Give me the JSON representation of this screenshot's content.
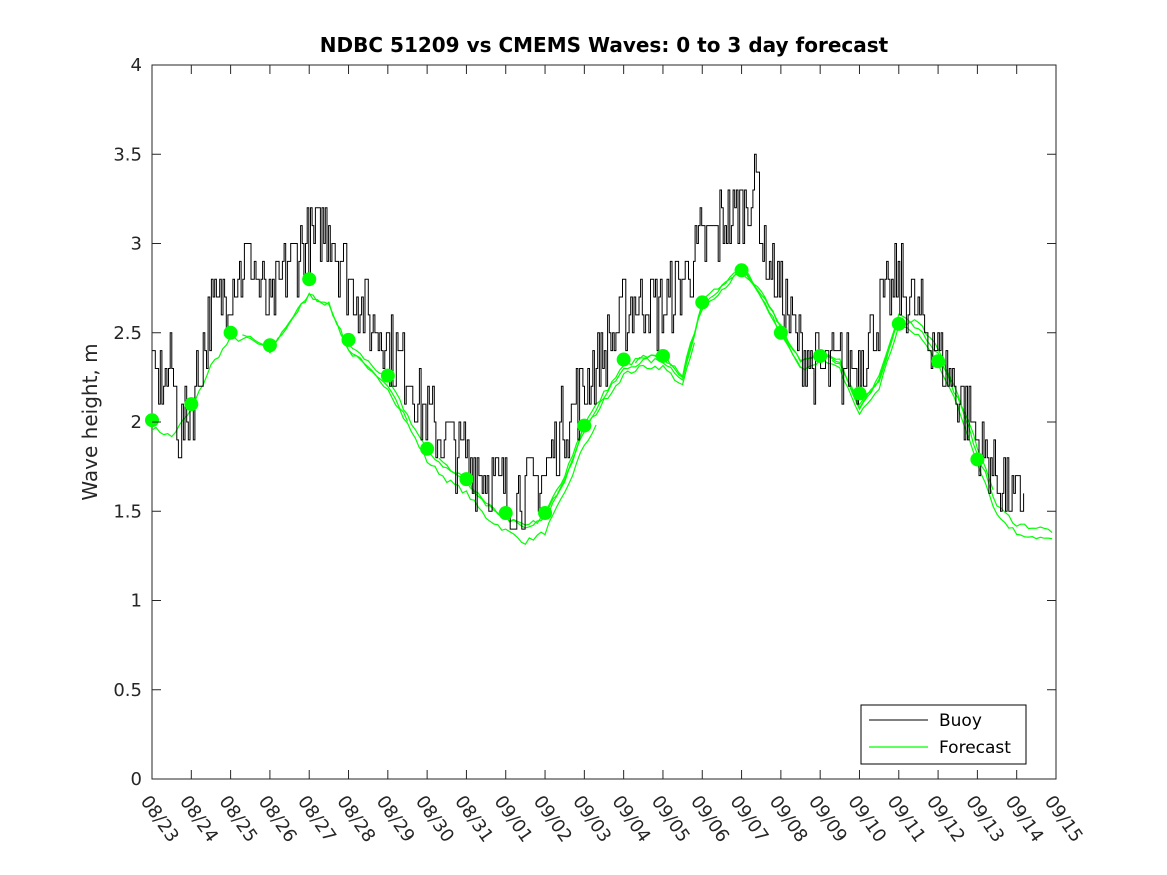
{
  "chart_data": {
    "type": "line",
    "title": "NDBC 51209 vs CMEMS Waves: 0 to 3 day forecast",
    "xlabel": "",
    "ylabel": "Wave height, m",
    "ylim": [
      0,
      4
    ],
    "yticks": [
      "0",
      "0.5",
      "1",
      "1.5",
      "2",
      "2.5",
      "3",
      "3.5",
      "4"
    ],
    "xlim": [
      0,
      23
    ],
    "xticks": [
      "08/23",
      "08/24",
      "08/25",
      "08/26",
      "08/27",
      "08/28",
      "08/29",
      "08/30",
      "08/31",
      "09/01",
      "09/02",
      "09/03",
      "09/04",
      "09/05",
      "09/06",
      "09/07",
      "09/08",
      "09/09",
      "09/10",
      "09/11",
      "09/12",
      "09/13",
      "09/14",
      "09/15"
    ],
    "legend": {
      "position": "bottom-right",
      "entries": [
        "Buoy",
        "Forecast"
      ]
    },
    "colors": {
      "buoy": "#000000",
      "forecast": "#00ff00",
      "axes": "#262626"
    },
    "buoy": {
      "name": "Buoy",
      "x": [
        0,
        0.5,
        0.7,
        1,
        1.5,
        2,
        2.5,
        3,
        3.5,
        4,
        4.5,
        5,
        5.5,
        6,
        6.5,
        7,
        7.5,
        8,
        8.5,
        9,
        9.5,
        10,
        10.5,
        11,
        11.5,
        12,
        12.5,
        13,
        13.5,
        14,
        14.5,
        15,
        15.4,
        15.5,
        16,
        16.5,
        17,
        17.5,
        18,
        18.5,
        19,
        19.5,
        20,
        20.5,
        21,
        21.5,
        22,
        22.2
      ],
      "y": [
        2.2,
        2.3,
        1.9,
        2.1,
        2.6,
        2.8,
        2.9,
        2.6,
        2.9,
        3.0,
        3.1,
        2.8,
        2.6,
        2.45,
        2.3,
        2.0,
        1.9,
        1.8,
        1.7,
        1.6,
        1.6,
        1.7,
        2.0,
        2.2,
        2.4,
        2.6,
        2.7,
        2.6,
        2.8,
        3.0,
        3.1,
        3.2,
        3.35,
        3.0,
        2.7,
        2.4,
        2.3,
        2.3,
        2.35,
        2.6,
        2.8,
        2.6,
        2.4,
        2.2,
        1.9,
        1.7,
        1.55,
        1.6
      ]
    },
    "forecast": {
      "name": "Forecast",
      "x": [
        0,
        0.5,
        1,
        1.5,
        2,
        2.5,
        3,
        3.5,
        4,
        4.5,
        5,
        5.5,
        6,
        6.5,
        7,
        7.5,
        8,
        8.5,
        9,
        9.5,
        10,
        10.5,
        11,
        11.5,
        12,
        12.5,
        13,
        13.5,
        14,
        14.5,
        15,
        15.5,
        16,
        16.5,
        17,
        17.5,
        18,
        18.5,
        19,
        19.5,
        20,
        20.5,
        21,
        21.5,
        22,
        22.5,
        23
      ],
      "y": [
        2.0,
        1.95,
        2.1,
        2.35,
        2.5,
        2.5,
        2.43,
        2.6,
        2.75,
        2.7,
        2.45,
        2.35,
        2.25,
        2.05,
        1.85,
        1.75,
        1.68,
        1.55,
        1.48,
        1.42,
        1.48,
        1.7,
        1.98,
        2.15,
        2.3,
        2.35,
        2.35,
        2.25,
        2.65,
        2.75,
        2.85,
        2.7,
        2.5,
        2.3,
        2.35,
        2.3,
        2.05,
        2.2,
        2.55,
        2.5,
        2.35,
        2.1,
        1.8,
        1.5,
        1.4,
        1.38,
        1.36
      ]
    },
    "forecast_markers": {
      "x": [
        0,
        1,
        2,
        3,
        4,
        5,
        6,
        7,
        8,
        9,
        10,
        11,
        12,
        13,
        14,
        15,
        16,
        17,
        18,
        19,
        20,
        21
      ],
      "y": [
        2.01,
        2.1,
        2.5,
        2.43,
        2.8,
        2.46,
        2.26,
        1.85,
        1.68,
        1.49,
        1.49,
        1.98,
        2.35,
        2.37,
        2.67,
        2.85,
        2.5,
        2.37,
        2.16,
        2.55,
        2.34,
        1.79
      ]
    }
  }
}
